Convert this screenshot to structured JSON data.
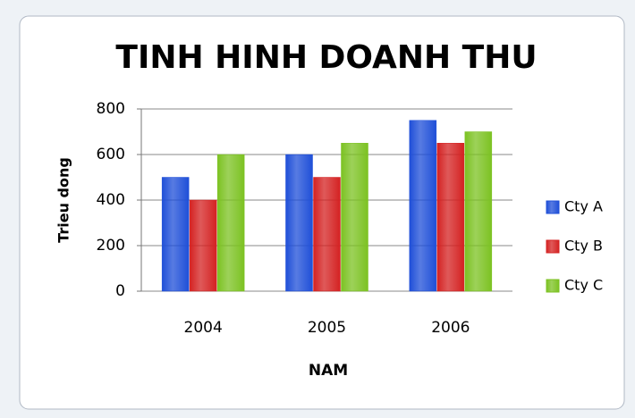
{
  "chart_data": {
    "type": "bar",
    "title": "TINH HINH DOANH THU",
    "x_label": "NAM",
    "y_label": "Trieu dong",
    "categories": [
      "2004",
      "2005",
      "2006"
    ],
    "series": [
      {
        "name": "Cty A",
        "color": "#1f4fd8",
        "values": [
          500,
          600,
          750
        ]
      },
      {
        "name": "Cty B",
        "color": "#d42222",
        "values": [
          400,
          500,
          650
        ]
      },
      {
        "name": "Cty C",
        "color": "#7cc222",
        "values": [
          600,
          650,
          700
        ]
      }
    ],
    "ylim": [
      0,
      800
    ],
    "yticks": [
      0,
      200,
      400,
      600,
      800
    ],
    "grid": true,
    "legend": "right"
  }
}
